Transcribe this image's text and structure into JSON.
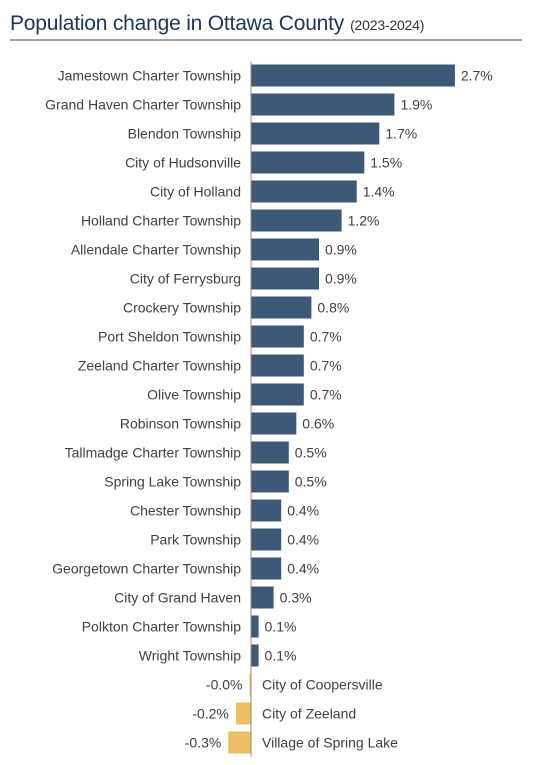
{
  "chart_data": {
    "type": "bar",
    "orientation": "horizontal",
    "title": "Population change in Ottawa County",
    "subtitle": "(2023-2024)",
    "categories": [
      "Jamestown Charter Township",
      "Grand Haven Charter Township",
      "Blendon Township",
      "City of Hudsonville",
      "City of Holland",
      "Holland Charter Township",
      "Allendale Charter Township",
      "City of Ferrysburg",
      "Crockery Township",
      "Port Sheldon Township",
      "Zeeland Charter Township",
      "Olive Township",
      "Robinson Township",
      "Tallmadge Charter Township",
      "Spring Lake Township",
      "Chester Township",
      "Park Township",
      "Georgetown Charter Township",
      "City of Grand Haven",
      "Polkton Charter Township",
      "Wright Township",
      "City of Coopersville",
      "City of Zeeland",
      "Village of Spring Lake"
    ],
    "values": [
      2.7,
      1.9,
      1.7,
      1.5,
      1.4,
      1.2,
      0.9,
      0.9,
      0.8,
      0.7,
      0.7,
      0.7,
      0.6,
      0.5,
      0.5,
      0.4,
      0.4,
      0.4,
      0.3,
      0.1,
      0.1,
      -0.02,
      -0.2,
      -0.3
    ],
    "value_labels": [
      "2.7%",
      "1.9%",
      "1.7%",
      "1.5%",
      "1.4%",
      "1.2%",
      "0.9%",
      "0.9%",
      "0.8%",
      "0.7%",
      "0.7%",
      "0.7%",
      "0.6%",
      "0.5%",
      "0.5%",
      "0.4%",
      "0.4%",
      "0.4%",
      "0.3%",
      "0.1%",
      "0.1%",
      "-0.0%",
      "-0.2%",
      "-0.3%"
    ],
    "unit": "%",
    "colors": {
      "positive": "#3e5877",
      "negative": "#edbf62",
      "axis": "#8c8c8c",
      "label": "#404040"
    },
    "xlim": [
      -0.4,
      2.9
    ],
    "grid": false,
    "legend": "none"
  }
}
